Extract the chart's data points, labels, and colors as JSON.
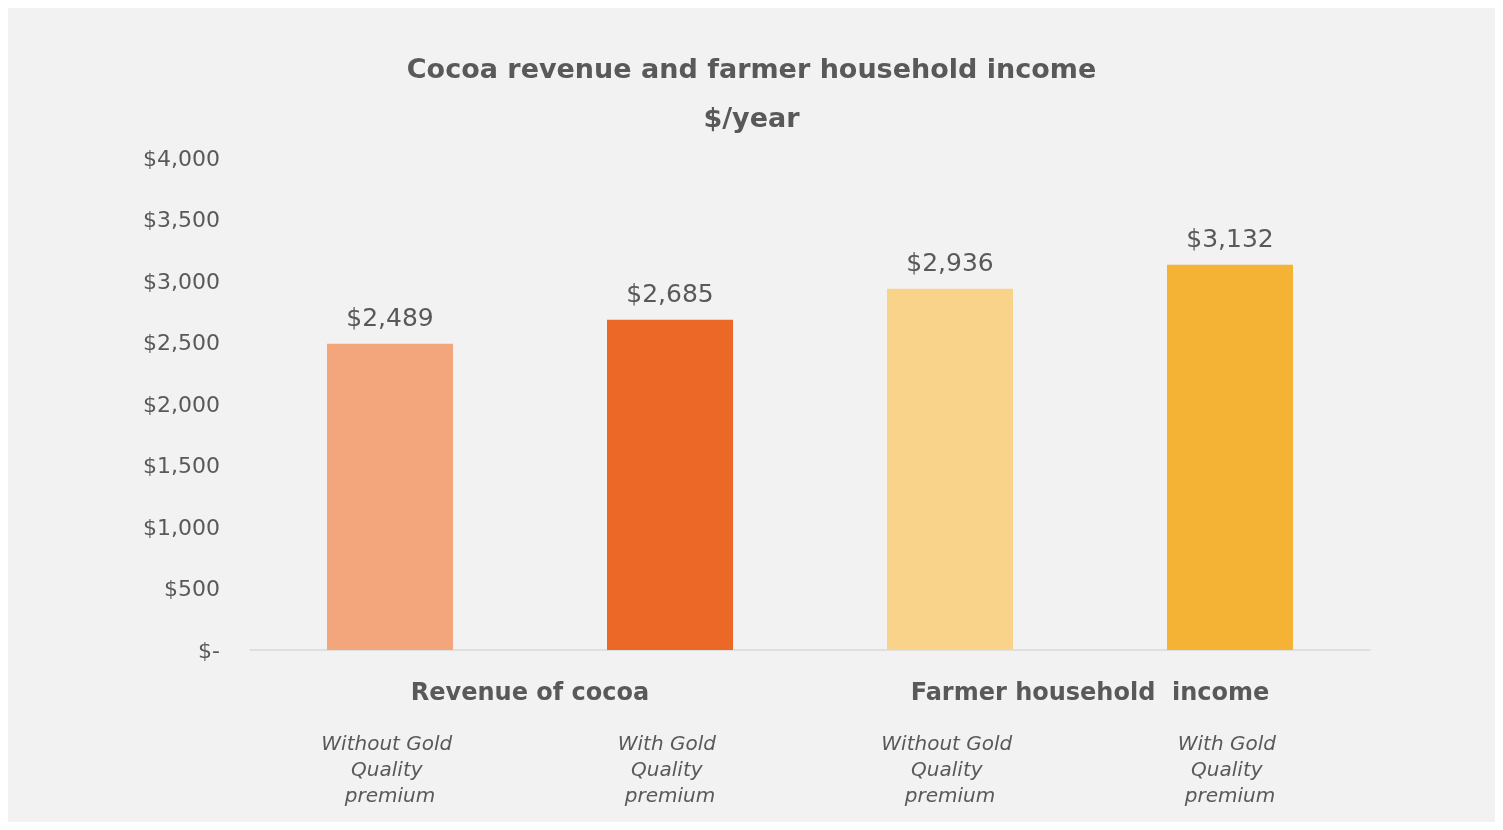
{
  "chart_data": {
    "type": "bar",
    "title": "Cocoa revenue and farmer household income",
    "subtitle": "$/year",
    "categories": [
      "Without Gold Quality premium",
      "With Gold Quality premium",
      "Without Gold Quality premium",
      "With Gold Quality premium"
    ],
    "values": [
      2489,
      2685,
      2936,
      3132
    ],
    "value_labels": [
      "$2,489",
      "$2,685",
      "$2,936",
      "$3,132"
    ],
    "colors": [
      "#f3a57b",
      "#eb6826",
      "#f9d38a",
      "#f5b336"
    ],
    "annotations": [
      "Revenue of cocoa",
      "Farmer household  income"
    ],
    "ylim": [
      0,
      4000
    ],
    "yticks": [
      {
        "value": 0,
        "label": "$-"
      },
      {
        "value": 500,
        "label": "$500"
      },
      {
        "value": 1000,
        "label": "$1,000"
      },
      {
        "value": 1500,
        "label": "$1,500"
      },
      {
        "value": 2000,
        "label": "$2,000"
      },
      {
        "value": 2500,
        "label": "$2,500"
      },
      {
        "value": 3000,
        "label": "$3,000"
      },
      {
        "value": 3500,
        "label": "$3,500"
      },
      {
        "value": 4000,
        "label": "$4,000"
      }
    ],
    "grid": false
  }
}
